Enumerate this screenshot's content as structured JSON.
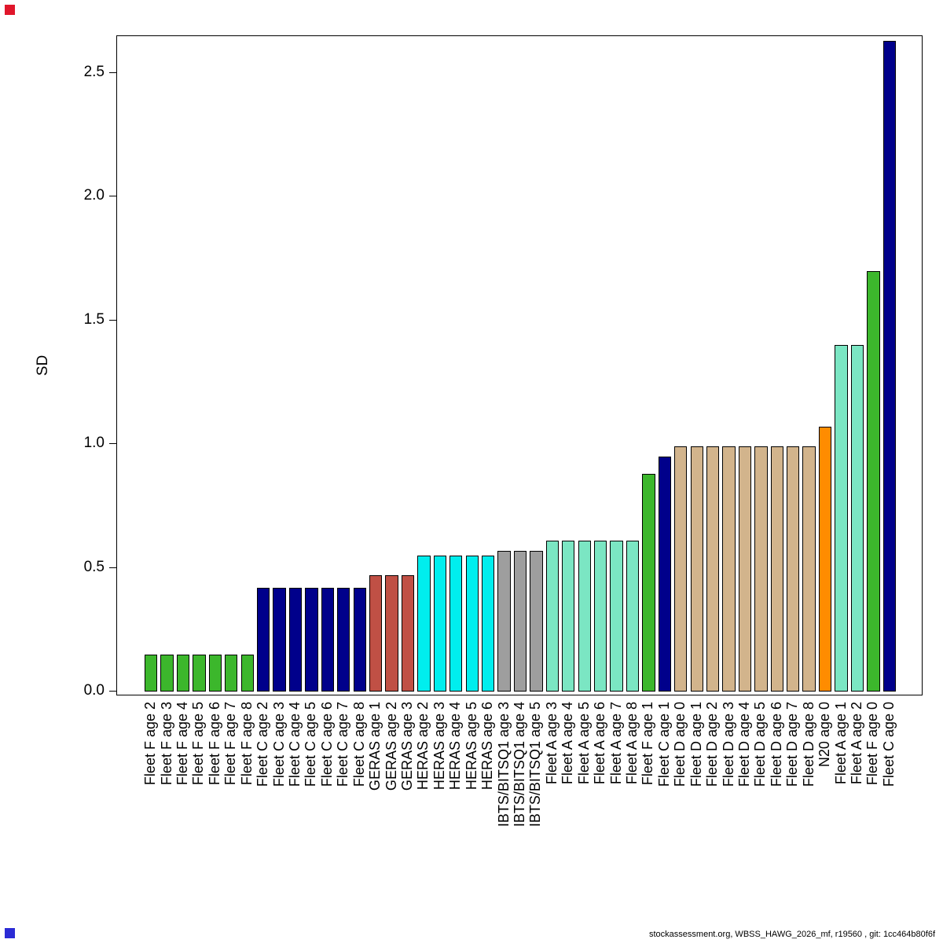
{
  "chart_data": {
    "type": "bar",
    "title": "",
    "xlabel": "",
    "ylabel": "SD",
    "ylim": [
      0,
      2.65
    ],
    "yticks": [
      0.0,
      0.5,
      1.0,
      1.5,
      2.0,
      2.5
    ],
    "grid": false,
    "legend": "none",
    "categories": [
      "Fleet F age 2",
      "Fleet F age 3",
      "Fleet F age 4",
      "Fleet F age 5",
      "Fleet F age 6",
      "Fleet F age 7",
      "Fleet F age 8",
      "Fleet C age 2",
      "Fleet C age 3",
      "Fleet C age 4",
      "Fleet C age 5",
      "Fleet C age 6",
      "Fleet C age 7",
      "Fleet C age 8",
      "GERAS age 1",
      "GERAS age 2",
      "GERAS age 3",
      "HERAS age 2",
      "HERAS age 3",
      "HERAS age 4",
      "HERAS age 5",
      "HERAS age 6",
      "IBTS/BITSQ1 age 3",
      "IBTS/BITSQ1 age 4",
      "IBTS/BITSQ1 age 5",
      "Fleet A age 3",
      "Fleet A age 4",
      "Fleet A age 5",
      "Fleet A age 6",
      "Fleet A age 7",
      "Fleet A age 8",
      "Fleet F age 1",
      "Fleet C age 1",
      "Fleet D age 0",
      "Fleet D age 1",
      "Fleet D age 2",
      "Fleet D age 3",
      "Fleet D age 4",
      "Fleet D age 5",
      "Fleet D age 6",
      "Fleet D age 7",
      "Fleet D age 8",
      "N20 age 0",
      "Fleet A age 1",
      "Fleet A age 2",
      "Fleet F age 0",
      "Fleet C age 0"
    ],
    "values": [
      0.15,
      0.15,
      0.15,
      0.15,
      0.15,
      0.15,
      0.15,
      0.42,
      0.42,
      0.42,
      0.42,
      0.42,
      0.42,
      0.42,
      0.47,
      0.47,
      0.47,
      0.55,
      0.55,
      0.55,
      0.55,
      0.55,
      0.57,
      0.57,
      0.57,
      0.61,
      0.61,
      0.61,
      0.61,
      0.61,
      0.61,
      0.88,
      0.95,
      0.99,
      0.99,
      0.99,
      0.99,
      0.99,
      0.99,
      0.99,
      0.99,
      0.99,
      1.07,
      1.4,
      1.4,
      1.7,
      2.63
    ],
    "colors": [
      "#3CB72C",
      "#3CB72C",
      "#3CB72C",
      "#3CB72C",
      "#3CB72C",
      "#3CB72C",
      "#3CB72C",
      "#00008B",
      "#00008B",
      "#00008B",
      "#00008B",
      "#00008B",
      "#00008B",
      "#00008B",
      "#C05045",
      "#C05045",
      "#C05045",
      "#00EEEE",
      "#00EEEE",
      "#00EEEE",
      "#00EEEE",
      "#00EEEE",
      "#9E9E9E",
      "#9E9E9E",
      "#9E9E9E",
      "#7BE6C3",
      "#7BE6C3",
      "#7BE6C3",
      "#7BE6C3",
      "#7BE6C3",
      "#7BE6C3",
      "#3CB72C",
      "#00008B",
      "#D2B48C",
      "#D2B48C",
      "#D2B48C",
      "#D2B48C",
      "#D2B48C",
      "#D2B48C",
      "#D2B48C",
      "#D2B48C",
      "#D2B48C",
      "#FF8C00",
      "#7BE6C3",
      "#7BE6C3",
      "#3CB72C",
      "#00008B"
    ],
    "palette": {
      "Fleet F": "#3CB72C",
      "Fleet C": "#00008B",
      "GERAS": "#C05045",
      "HERAS": "#00EEEE",
      "IBTS/BITSQ1": "#9E9E9E",
      "Fleet A": "#7BE6C3",
      "Fleet D": "#D2B48C",
      "N20": "#FF8C00"
    }
  },
  "markers": {
    "top_left_color": "#E0162B",
    "bottom_left_color": "#2B2BD5"
  },
  "footer": {
    "text": "stockassessment.org, WBSS_HAWG_2026_mf, r19560 , git: 1cc464b80f6f"
  }
}
